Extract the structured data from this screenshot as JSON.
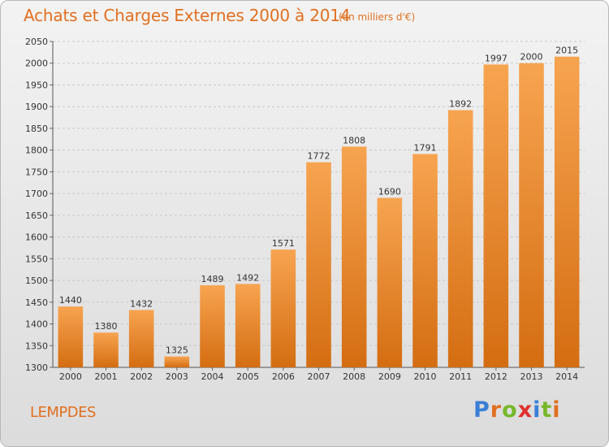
{
  "header": {
    "title": "Achats et Charges Externes 2000 à 2014",
    "subtitle": "(en milliers d'€)"
  },
  "location": "LEMPDES",
  "logo": {
    "text": "Proxiti",
    "colors": [
      "#3a7fd5",
      "#e07020",
      "#77b82a",
      "#e03030",
      "#3a7fd5",
      "#77b82a",
      "#e07020"
    ]
  },
  "colors": {
    "accent": "#e07020",
    "bar_top": "#f7a450",
    "bar_bottom": "#d46d12"
  },
  "chart_data": {
    "type": "bar",
    "title": "Achats et Charges Externes 2000 à 2014",
    "subtitle": "(en milliers d'€)",
    "categories": [
      "2000",
      "2001",
      "2002",
      "2003",
      "2004",
      "2005",
      "2006",
      "2007",
      "2008",
      "2009",
      "2010",
      "2011",
      "2012",
      "2013",
      "2014"
    ],
    "values": [
      1440,
      1380,
      1432,
      1325,
      1489,
      1492,
      1571,
      1772,
      1808,
      1690,
      1791,
      1892,
      1997,
      2000,
      2015
    ],
    "ylim": [
      1300,
      2050
    ],
    "yticks": [
      1300,
      1350,
      1400,
      1450,
      1500,
      1550,
      1600,
      1650,
      1700,
      1750,
      1800,
      1850,
      1900,
      1950,
      2000,
      2050
    ],
    "grid": true,
    "data_labels": true
  }
}
